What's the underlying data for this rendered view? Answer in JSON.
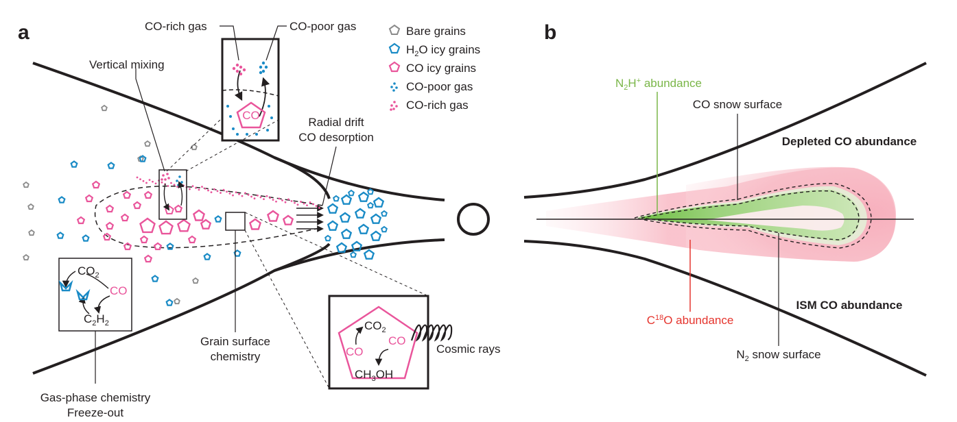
{
  "panels": {
    "a": "a",
    "b": "b"
  },
  "legend": {
    "bare": "Bare grains",
    "h2o_pre": "H",
    "h2o_sub": "2",
    "h2o_post": "O icy grains",
    "co": "CO icy grains",
    "co_poor": "CO-poor gas",
    "co_rich": "CO-rich gas"
  },
  "panel_a": {
    "inset_co_rich": "CO-rich gas",
    "inset_co_poor": "CO-poor gas",
    "inset_co": "CO",
    "vertical_mixing": "Vertical mixing",
    "radial_drift": "Radial drift",
    "co_desorption": "CO desorption",
    "gas_chem": {
      "co2_pre": "CO",
      "co2_sub": "2",
      "co": "CO",
      "c2h2_a": "C",
      "c2h2_b": "2",
      "c2h2_c": "H",
      "c2h2_d": "2"
    },
    "gas_phase_chemistry": "Gas-phase chemistry",
    "freeze_out": "Freeze-out",
    "grain_surface_1": "Grain surface",
    "grain_surface_2": "chemistry",
    "grain_inset": {
      "co2_pre": "CO",
      "co2_sub": "2",
      "co_left": "CO",
      "co_right": "CO",
      "ch3oh_a": "CH",
      "ch3oh_b": "3",
      "ch3oh_c": "OH"
    },
    "cosmic_rays": "Cosmic rays"
  },
  "panel_b": {
    "n2h_a": "N",
    "n2h_b": "2",
    "n2h_c": "H",
    "n2h_d": "+",
    "n2h_e": " abundance",
    "co_snow_surface": "CO snow surface",
    "depleted": "Depleted CO abundance",
    "ism": "ISM CO abundance",
    "c18o_a": "C",
    "c18o_b": "18",
    "c18o_c": "O abundance",
    "n2_a": "N",
    "n2_b": "2",
    "n2_c": " snow surface"
  },
  "colors": {
    "pink": "#e9559b",
    "blue": "#1a8bc6",
    "grey": "#8a8a8a",
    "green": "#7ab648",
    "red": "#e5342d",
    "dark": "#231f20"
  },
  "icons": [
    "pentagon-grain-icon",
    "gas-dot-cluster-icon",
    "arrow-icon",
    "cosmic-ray-spring-icon",
    "star-ring-icon"
  ]
}
